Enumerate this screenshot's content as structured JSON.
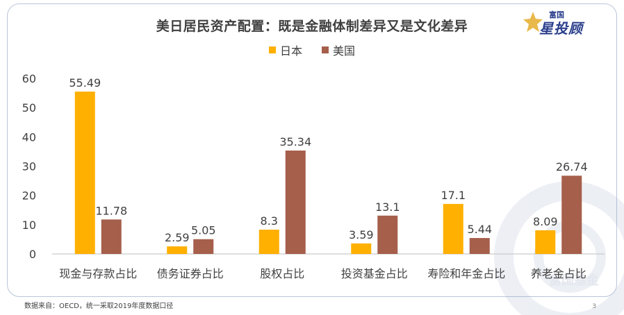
{
  "title": "美日居民资产配置：既是金融体制差异又是文化差异",
  "logo": {
    "small": "富国",
    "big": "星投顾"
  },
  "watermark": "富国基金",
  "footnote": "数据来自：OECD，统一采取2019年度数据口径",
  "page_number": "3",
  "colors": {
    "japan": "#FFB000",
    "usa": "#A55F4B",
    "frame": "#B9C5D8",
    "text": "#404040"
  },
  "chart_data": {
    "type": "bar",
    "title": "美日居民资产配置：既是金融体制差异又是文化差异",
    "xlabel": "",
    "ylabel": "",
    "ylim": [
      0,
      60
    ],
    "yticks": [
      0,
      10,
      20,
      30,
      40,
      50,
      60
    ],
    "grid": false,
    "legend_position": "top",
    "categories": [
      "现金与存款占比",
      "债务证券占比",
      "股权占比",
      "投资基金占比",
      "寿险和年金占比",
      "养老金占比"
    ],
    "series": [
      {
        "name": "日本",
        "color": "#FFB000",
        "values": [
          55.49,
          2.59,
          8.3,
          3.59,
          17.1,
          8.09
        ],
        "labels": [
          "55.49",
          "2.59",
          "8.3",
          "3.59",
          "17.1",
          "8.09"
        ]
      },
      {
        "name": "美国",
        "color": "#A55F4B",
        "values": [
          11.78,
          5.05,
          35.34,
          13.1,
          5.44,
          26.74
        ],
        "labels": [
          "11.78",
          "5.05",
          "35.34",
          "13.1",
          "5.44",
          "26.74"
        ]
      }
    ]
  }
}
